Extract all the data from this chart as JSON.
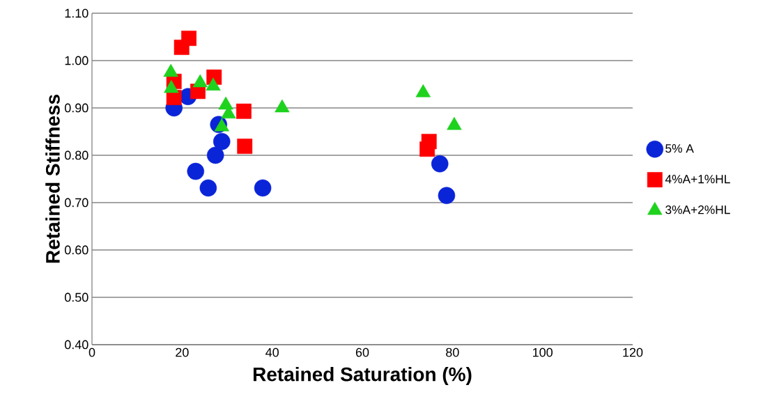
{
  "chart_data": {
    "type": "scatter",
    "xlabel": "Retained Saturation (%)",
    "ylabel": "Retained Stiffness",
    "xlim": [
      0,
      120
    ],
    "xticks": [
      0,
      20,
      40,
      60,
      80,
      100,
      120
    ],
    "ylim": [
      0.4,
      1.1
    ],
    "yticks": [
      {
        "value": 0.4,
        "label": "0.40"
      },
      {
        "value": 0.5,
        "label": "0.50"
      },
      {
        "value": 0.6,
        "label": "0.60"
      },
      {
        "value": 0.7,
        "label": "0.70"
      },
      {
        "value": 0.8,
        "label": "0.80"
      },
      {
        "value": 0.9,
        "label": "0.90"
      },
      {
        "value": 1.0,
        "label": "1.00"
      },
      {
        "value": 1.1,
        "label": "1.10"
      }
    ],
    "grid": "y",
    "legend": "right",
    "series": [
      {
        "name": "5% A",
        "color": "#0a24d8",
        "marker": "circle",
        "x": [
          18.2,
          21.3,
          23.0,
          25.8,
          27.4,
          28.1,
          28.8,
          37.9,
          77.2,
          78.7
        ],
        "values": [
          0.9,
          0.924,
          0.766,
          0.731,
          0.8,
          0.865,
          0.829,
          0.731,
          0.782,
          0.715
        ]
      },
      {
        "name": "4%A+1%HL",
        "color": "#ff0000",
        "marker": "square",
        "x": [
          19.9,
          21.5,
          18.2,
          18.2,
          23.5,
          27.1,
          33.7,
          33.9,
          74.4,
          74.8
        ],
        "values": [
          1.028,
          1.047,
          0.956,
          0.922,
          0.935,
          0.965,
          0.893,
          0.819,
          0.813,
          0.829
        ]
      },
      {
        "name": "3%A+2%HL",
        "color": "#1ed21e",
        "marker": "triangle",
        "x": [
          17.5,
          17.6,
          24.0,
          26.9,
          29.7,
          30.3,
          28.8,
          42.2,
          73.5,
          80.4
        ],
        "values": [
          0.975,
          0.941,
          0.953,
          0.946,
          0.906,
          0.887,
          0.86,
          0.9,
          0.932,
          0.863
        ]
      }
    ]
  }
}
